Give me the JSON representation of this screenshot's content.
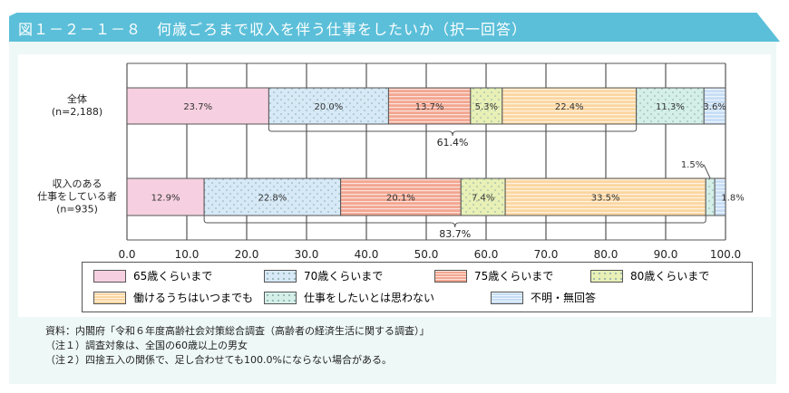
{
  "title": "図１－２－１－８　何歳ごろまで収入を伴う仕事をしたいか（択一回答）",
  "chart_data": {
    "type": "bar",
    "orientation": "horizontal",
    "stacked": true,
    "categories": [
      "全体\n(n=2,188)",
      "収入のある\n仕事をしている者\n(n=935)"
    ],
    "series": [
      {
        "name": "65歳くらいまで",
        "values": [
          23.7,
          12.9
        ],
        "color": "#f6d0e0",
        "pattern": "solid"
      },
      {
        "name": "70歳くらいまで",
        "values": [
          20.0,
          22.8
        ],
        "color": "#d7e9f7",
        "pattern": "dots"
      },
      {
        "name": "75歳くらいまで",
        "values": [
          13.7,
          20.1
        ],
        "color": "#f3a690",
        "pattern": "stripes"
      },
      {
        "name": "80歳くらいまで",
        "values": [
          5.3,
          7.4
        ],
        "color": "#e8f0b6",
        "pattern": "dots"
      },
      {
        "name": "働けるうちはいつまでも",
        "values": [
          22.4,
          33.5
        ],
        "color": "#fbd6a0",
        "pattern": "stripes"
      },
      {
        "name": "仕事をしたいとは思わない",
        "values": [
          11.3,
          1.5
        ],
        "color": "#d4efe8",
        "pattern": "dots"
      },
      {
        "name": "不明・無回答",
        "values": [
          3.6,
          1.8
        ],
        "color": "#c6ddf5",
        "pattern": "stripes"
      }
    ],
    "value_labels": [
      [
        "23.7%",
        "20.0%",
        "13.7%",
        "5.3%",
        "22.4%",
        "11.3%",
        "3.6%"
      ],
      [
        "12.9%",
        "22.8%",
        "20.1%",
        "7.4%",
        "33.5%",
        "1.5%",
        "1.8%"
      ]
    ],
    "brackets": [
      "61.4%",
      "83.7%"
    ],
    "xlim": [
      0,
      100
    ],
    "xticks": [
      "0.0",
      "10.0",
      "20.0",
      "30.0",
      "40.0",
      "50.0",
      "60.0",
      "70.0",
      "80.0",
      "90.0",
      "100.0"
    ],
    "xunit": "(%)",
    "grid": true,
    "legend": "bottom"
  },
  "notes": [
    "資料：内閣府「令和６年度高齢社会対策総合調査（高齢者の経済生活に関する調査）」",
    "（注１）調査対象は、全国の60歳以上の男女",
    "（注２）四捨五入の関係で、足し合わせても100.0%にならない場合がある。"
  ]
}
